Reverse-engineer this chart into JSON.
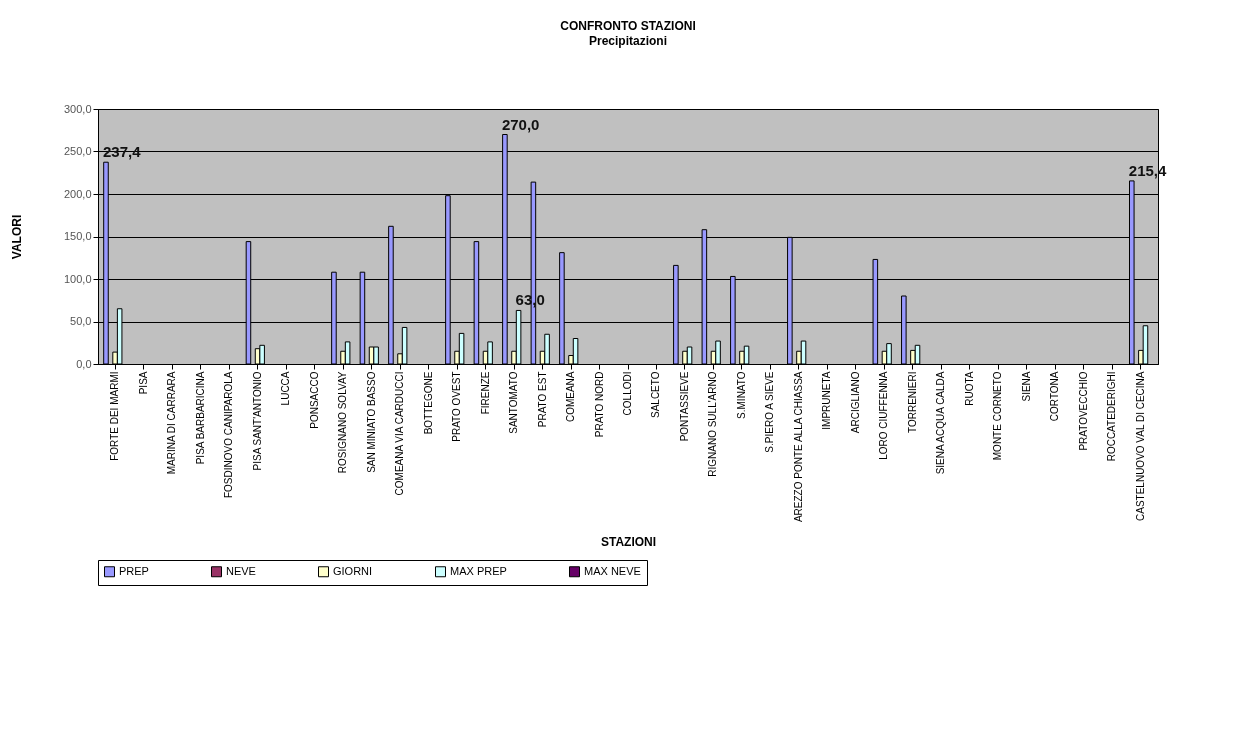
{
  "chart_data": {
    "type": "bar",
    "title": "CONFRONTO STAZIONI",
    "subtitle": "Precipitazioni",
    "xlabel": "STAZIONI",
    "ylabel": "VALORI",
    "categories": [
      "FORTE DEI MARMI",
      "PISA",
      "MARINA DI CARRARA",
      "PISA BARBARICINA",
      "FOSDINOVO CANIPAROLA",
      "PISA SANT'ANTONIO",
      "LUCCA",
      "PONSACCO",
      "ROSIGNANO SOLVAY",
      "SAN MINIATO BASSO",
      "COMEANA VIA CARDUCCI",
      "BOTTEGONE",
      "PRATO OVEST",
      "FIRENZE",
      "SANTOMATO",
      "PRATO EST",
      "COMEANA",
      "PRATO NORD",
      "COLLODI",
      "SALCETO",
      "PONTASSIEVE",
      "RIGNANO SULL'ARNO",
      "S.MINATO",
      "S.PIERO A SIEVE",
      "AREZZO PONTE ALLA CHIASSA",
      "IMPRUNETA",
      "ARCIGLIANO",
      "LORO CIUFFENNA",
      "TORRENIERI",
      "SIENA ACQUA CALDA",
      "RUOTA",
      "MONTE CORNETO",
      "SIENA",
      "CORTONA",
      "PRATOVECCHIO",
      "ROCCATEDERIGHI",
      "CASTELNUOVO VAL DI CECINA"
    ],
    "series": [
      {
        "name": "PREP",
        "color": "#9999ff",
        "values": [
          237.4,
          null,
          null,
          null,
          null,
          144,
          null,
          null,
          108,
          108,
          162,
          null,
          198,
          144,
          270.0,
          214,
          131,
          null,
          null,
          null,
          116,
          158,
          103,
          null,
          149,
          null,
          null,
          123,
          80,
          null,
          null,
          null,
          null,
          null,
          null,
          null,
          215.4
        ],
        "value_labels": [
          "237,4",
          null,
          null,
          null,
          null,
          null,
          null,
          null,
          null,
          null,
          null,
          null,
          null,
          null,
          "270,0",
          null,
          null,
          null,
          null,
          null,
          null,
          null,
          null,
          null,
          null,
          null,
          null,
          null,
          null,
          null,
          null,
          null,
          null,
          null,
          null,
          null,
          "215,4"
        ]
      },
      {
        "name": "NEVE",
        "color": "#993366",
        "values": [
          null,
          null,
          null,
          null,
          null,
          null,
          null,
          null,
          null,
          null,
          null,
          null,
          null,
          null,
          null,
          null,
          null,
          null,
          null,
          null,
          null,
          null,
          null,
          null,
          null,
          null,
          null,
          null,
          null,
          null,
          null,
          null,
          null,
          null,
          null,
          null,
          null
        ]
      },
      {
        "name": "GIORNI",
        "color": "#ffffcc",
        "values": [
          14,
          null,
          null,
          null,
          null,
          18,
          null,
          null,
          15,
          20,
          12,
          null,
          15,
          15,
          15,
          15,
          10,
          null,
          null,
          null,
          15,
          15,
          15,
          null,
          15,
          null,
          null,
          15,
          16,
          null,
          null,
          null,
          null,
          null,
          null,
          null,
          16
        ]
      },
      {
        "name": "MAX PREP",
        "color": "#ccffff",
        "values": [
          65,
          null,
          null,
          null,
          null,
          22,
          null,
          null,
          26,
          20,
          43,
          null,
          36,
          26,
          63.0,
          35,
          30,
          null,
          null,
          null,
          20,
          27,
          21,
          null,
          27,
          null,
          null,
          24,
          22,
          null,
          null,
          null,
          null,
          null,
          null,
          null,
          45
        ],
        "value_labels": [
          null,
          null,
          null,
          null,
          null,
          null,
          null,
          null,
          null,
          null,
          null,
          null,
          null,
          null,
          "63,0",
          null,
          null,
          null,
          null,
          null,
          null,
          null,
          null,
          null,
          null,
          null,
          null,
          null,
          null,
          null,
          null,
          null,
          null,
          null,
          null,
          null,
          null
        ]
      },
      {
        "name": "MAX NEVE",
        "color": "#660066",
        "values": [
          null,
          null,
          null,
          null,
          null,
          null,
          null,
          null,
          null,
          null,
          null,
          null,
          null,
          null,
          null,
          null,
          null,
          null,
          null,
          null,
          null,
          null,
          null,
          null,
          null,
          null,
          null,
          null,
          null,
          null,
          null,
          null,
          null,
          null,
          null,
          null,
          null
        ]
      }
    ],
    "ylim": [
      0,
      300
    ],
    "yticks": [
      {
        "value": 0,
        "label": "0,0"
      },
      {
        "value": 50,
        "label": "50,0"
      },
      {
        "value": 100,
        "label": "100,0"
      },
      {
        "value": 150,
        "label": "150,0"
      },
      {
        "value": 200,
        "label": "200,0"
      },
      {
        "value": 250,
        "label": "250,0"
      },
      {
        "value": 300,
        "label": "300,0"
      }
    ],
    "grid": "y",
    "legend": "bottom"
  }
}
